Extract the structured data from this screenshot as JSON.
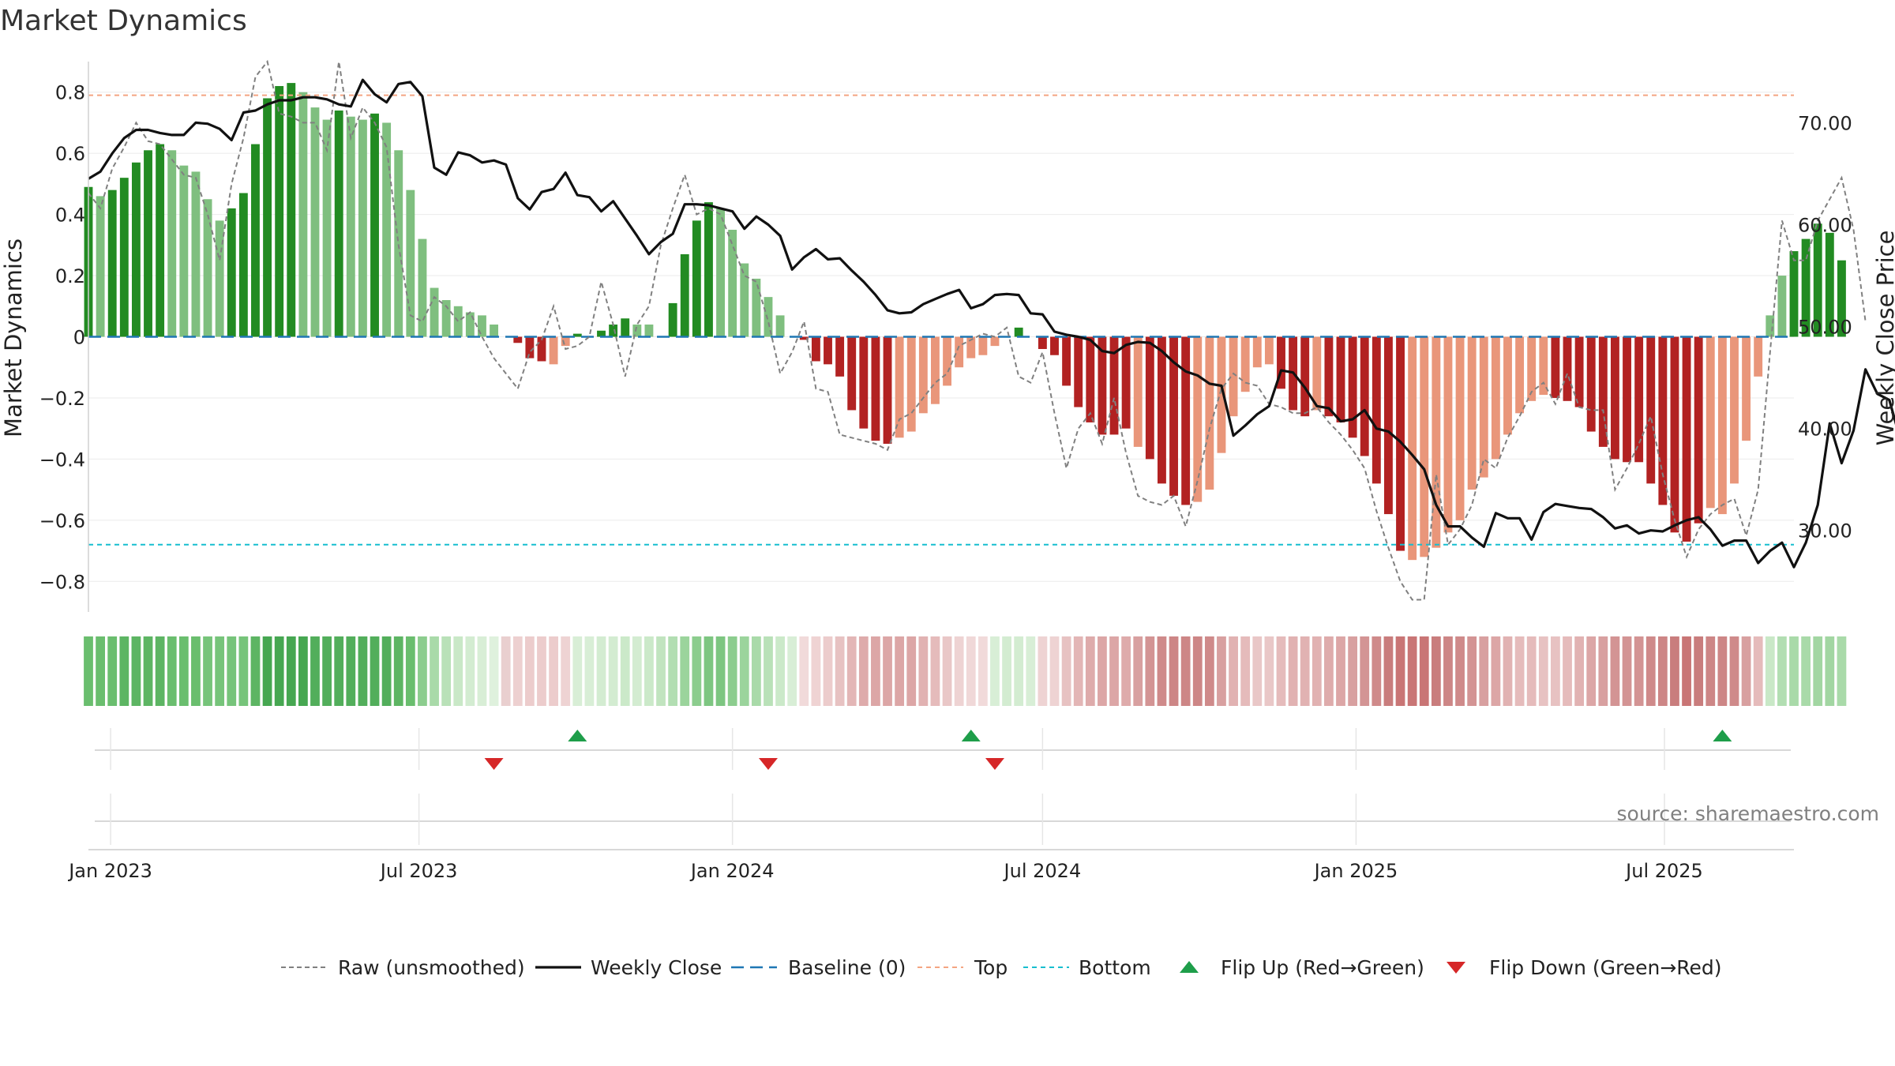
{
  "chart_data": {
    "type": "bar",
    "title": "Market Dynamics",
    "ylabel": "Market Dynamics",
    "ylabel_right": "Weekly Close Price",
    "ylim": [
      -0.9,
      0.9
    ],
    "ylim_right": [
      22,
      76
    ],
    "yticks": [
      0.8,
      0.6,
      0.4,
      0.2,
      0,
      -0.2,
      -0.4,
      -0.6,
      -0.8
    ],
    "ytick_labels": [
      "0.8",
      "0.6",
      "0.4",
      "0.2",
      "0",
      "−0.2",
      "−0.4",
      "−0.6",
      "−0.8"
    ],
    "yticks_right": [
      70,
      60,
      50,
      40,
      30
    ],
    "ytick_right_labels": [
      "70.00",
      "60.00",
      "50.00",
      "40.00",
      "30.00"
    ],
    "xlim": [
      "2022-12-19",
      "2025-09-15"
    ],
    "xticks": [
      {
        "date": "2023-01-01",
        "label": "Jan 2023"
      },
      {
        "date": "2023-07-01",
        "label": "Jul 2023"
      },
      {
        "date": "2024-01-01",
        "label": "Jan 2024"
      },
      {
        "date": "2024-07-01",
        "label": "Jul 2024"
      },
      {
        "date": "2025-01-01",
        "label": "Jan 2025"
      },
      {
        "date": "2025-07-01",
        "label": "Jul 2025"
      }
    ],
    "first_week": "2022-12-19",
    "top_level": 0.79,
    "bottom_level": -0.68,
    "colors": {
      "green_strong": "#228b22",
      "green_light": "#7fbf7f",
      "red_strong": "#b22222",
      "red_light": "#e9967a",
      "raw": "#808080",
      "close": "#111111",
      "baseline": "#1f77b4",
      "top": "#f4a582",
      "bottom": "#17becf",
      "flip_up": "#1e9e4a",
      "flip_down": "#d62728"
    },
    "momentum": [
      0.49,
      0.46,
      0.48,
      0.52,
      0.57,
      0.61,
      0.63,
      0.61,
      0.56,
      0.54,
      0.45,
      0.38,
      0.42,
      0.47,
      0.63,
      0.78,
      0.82,
      0.83,
      0.8,
      0.75,
      0.71,
      0.74,
      0.72,
      0.71,
      0.73,
      0.7,
      0.61,
      0.48,
      0.32,
      0.16,
      0.12,
      0.1,
      0.08,
      0.07,
      0.04,
      0.0,
      -0.02,
      -0.07,
      -0.08,
      -0.09,
      -0.03,
      0.01,
      0.0,
      0.02,
      0.04,
      0.06,
      0.04,
      0.04,
      0.0,
      0.11,
      0.27,
      0.38,
      0.44,
      0.42,
      0.35,
      0.24,
      0.19,
      0.13,
      0.07,
      0.0,
      -0.01,
      -0.08,
      -0.09,
      -0.13,
      -0.24,
      -0.3,
      -0.34,
      -0.35,
      -0.33,
      -0.31,
      -0.25,
      -0.22,
      -0.16,
      -0.1,
      -0.07,
      -0.06,
      -0.03,
      0.0,
      0.03,
      0.0,
      -0.04,
      -0.06,
      -0.16,
      -0.23,
      -0.28,
      -0.32,
      -0.32,
      -0.3,
      -0.36,
      -0.4,
      -0.48,
      -0.52,
      -0.55,
      -0.54,
      -0.5,
      -0.38,
      -0.26,
      -0.18,
      -0.1,
      -0.09,
      -0.17,
      -0.24,
      -0.26,
      -0.24,
      -0.26,
      -0.28,
      -0.33,
      -0.39,
      -0.48,
      -0.58,
      -0.7,
      -0.73,
      -0.72,
      -0.69,
      -0.64,
      -0.6,
      -0.5,
      -0.46,
      -0.4,
      -0.32,
      -0.25,
      -0.21,
      -0.19,
      -0.2,
      -0.21,
      -0.23,
      -0.31,
      -0.36,
      -0.4,
      -0.41,
      -0.41,
      -0.48,
      -0.55,
      -0.64,
      -0.67,
      -0.61,
      -0.56,
      -0.58,
      -0.48,
      -0.34,
      -0.13,
      0.07,
      0.2,
      0.28,
      0.32,
      0.37,
      0.34,
      0.25
    ],
    "bar_strength": [
      "s",
      "l",
      "s",
      "s",
      "s",
      "s",
      "s",
      "l",
      "l",
      "l",
      "l",
      "l",
      "s",
      "s",
      "s",
      "s",
      "s",
      "s",
      "l",
      "l",
      "l",
      "s",
      "l",
      "l",
      "s",
      "l",
      "l",
      "l",
      "l",
      "l",
      "l",
      "l",
      "l",
      "l",
      "l",
      "l",
      "s",
      "s",
      "s",
      "l",
      "l",
      "s",
      "s",
      "s",
      "s",
      "s",
      "l",
      "l",
      "s",
      "s",
      "s",
      "s",
      "s",
      "l",
      "l",
      "l",
      "l",
      "l",
      "l",
      "l",
      "s",
      "s",
      "s",
      "s",
      "s",
      "s",
      "s",
      "s",
      "l",
      "l",
      "l",
      "l",
      "l",
      "l",
      "l",
      "l",
      "l",
      "s",
      "s",
      "l",
      "s",
      "s",
      "s",
      "s",
      "s",
      "s",
      "s",
      "s",
      "l",
      "s",
      "s",
      "s",
      "s",
      "l",
      "l",
      "l",
      "l",
      "l",
      "l",
      "l",
      "s",
      "s",
      "s",
      "l",
      "s",
      "s",
      "s",
      "s",
      "s",
      "s",
      "s",
      "l",
      "l",
      "l",
      "l",
      "l",
      "l",
      "l",
      "l",
      "l",
      "l",
      "l",
      "l",
      "s",
      "s",
      "s",
      "s",
      "s",
      "s",
      "s",
      "s",
      "s",
      "s",
      "s",
      "s",
      "s",
      "l",
      "l",
      "l",
      "l",
      "l",
      "l",
      "l",
      "s",
      "s",
      "s",
      "s",
      "s",
      "l"
    ],
    "raw": [
      0.47,
      0.42,
      0.55,
      0.62,
      0.7,
      0.64,
      0.63,
      0.58,
      0.53,
      0.52,
      0.4,
      0.25,
      0.5,
      0.65,
      0.85,
      0.9,
      0.73,
      0.72,
      0.7,
      0.7,
      0.61,
      0.9,
      0.65,
      0.75,
      0.7,
      0.62,
      0.3,
      0.07,
      0.05,
      0.13,
      0.1,
      0.05,
      0.08,
      0.0,
      -0.07,
      -0.12,
      -0.17,
      -0.05,
      -0.01,
      0.1,
      -0.04,
      -0.03,
      0.0,
      0.18,
      0.04,
      -0.13,
      0.04,
      0.1,
      0.3,
      0.42,
      0.53,
      0.4,
      0.42,
      0.4,
      0.3,
      0.2,
      0.18,
      0.05,
      -0.12,
      -0.05,
      0.05,
      -0.17,
      -0.18,
      -0.32,
      -0.33,
      -0.34,
      -0.35,
      -0.37,
      -0.27,
      -0.25,
      -0.2,
      -0.15,
      -0.12,
      -0.03,
      -0.01,
      0.01,
      0.0,
      0.03,
      -0.13,
      -0.15,
      -0.05,
      -0.25,
      -0.43,
      -0.3,
      -0.25,
      -0.35,
      -0.2,
      -0.38,
      -0.52,
      -0.54,
      -0.55,
      -0.52,
      -0.62,
      -0.47,
      -0.3,
      -0.17,
      -0.12,
      -0.15,
      -0.16,
      -0.22,
      -0.23,
      -0.25,
      -0.25,
      -0.23,
      -0.28,
      -0.32,
      -0.37,
      -0.43,
      -0.57,
      -0.69,
      -0.8,
      -0.86,
      -0.86,
      -0.45,
      -0.68,
      -0.63,
      -0.55,
      -0.4,
      -0.43,
      -0.33,
      -0.26,
      -0.18,
      -0.15,
      -0.22,
      -0.12,
      -0.23,
      -0.24,
      -0.24,
      -0.5,
      -0.43,
      -0.35,
      -0.26,
      -0.45,
      -0.6,
      -0.72,
      -0.63,
      -0.58,
      -0.55,
      -0.53,
      -0.65,
      -0.5,
      -0.05,
      0.38,
      0.25,
      0.25,
      0.38,
      0.45,
      0.52,
      0.35,
      0.05
    ],
    "close": [
      64.5,
      65.2,
      67.0,
      68.5,
      69.3,
      69.3,
      69.0,
      68.8,
      68.8,
      70.0,
      69.9,
      69.4,
      68.3,
      71.0,
      71.2,
      71.8,
      72.2,
      72.2,
      72.5,
      72.5,
      72.3,
      71.8,
      71.6,
      74.2,
      72.8,
      72.0,
      73.8,
      74.0,
      72.6,
      65.6,
      64.9,
      67.1,
      66.8,
      66.1,
      66.3,
      65.9,
      62.6,
      61.5,
      63.2,
      63.5,
      65.1,
      62.9,
      62.7,
      61.3,
      62.3,
      60.6,
      58.9,
      57.1,
      58.3,
      59.1,
      62.0,
      62.0,
      61.9,
      61.6,
      61.3,
      59.6,
      60.8,
      60.0,
      58.9,
      55.6,
      56.8,
      57.6,
      56.6,
      56.7,
      55.5,
      54.4,
      53.1,
      51.6,
      51.3,
      51.4,
      52.2,
      52.7,
      53.2,
      53.6,
      51.8,
      52.2,
      53.1,
      53.2,
      53.1,
      51.3,
      51.2,
      49.5,
      49.2,
      49.0,
      48.7,
      47.6,
      47.4,
      48.2,
      48.5,
      48.4,
      47.6,
      46.5,
      45.6,
      45.2,
      44.4,
      44.2,
      39.3,
      40.3,
      41.4,
      42.2,
      45.7,
      45.5,
      44.0,
      42.2,
      42.0,
      40.7,
      40.9,
      41.8,
      40.0,
      39.7,
      38.7,
      37.4,
      36.0,
      32.5,
      30.4,
      30.4,
      29.3,
      28.4,
      31.7,
      31.2,
      31.2,
      29.1,
      31.8,
      32.6,
      32.4,
      32.2,
      32.1,
      31.3,
      30.2,
      30.5,
      29.7,
      30.0,
      29.9,
      30.5,
      31.0,
      31.3,
      30.1,
      28.5,
      29.0,
      29.0,
      26.8,
      28.0,
      28.8,
      26.4,
      28.8,
      32.5,
      40.5,
      36.6,
      39.8,
      45.8,
      43.4,
      42.8,
      38.6,
      37.6
    ]
  },
  "strip_colors": [
    "#6abe6e",
    "#6abe6e",
    "#6abe6e",
    "#5db563",
    "#5db563",
    "#5db563",
    "#5db563",
    "#6abe6e",
    "#6abe6e",
    "#6abe6e",
    "#76c47a",
    "#76c47a",
    "#76c47a",
    "#76c47a",
    "#5db563",
    "#46a751",
    "#46a751",
    "#46a751",
    "#46a751",
    "#52ae5b",
    "#52ae5b",
    "#52ae5b",
    "#52ae5b",
    "#52ae5b",
    "#52ae5b",
    "#52ae5b",
    "#5db563",
    "#6abe6e",
    "#8ccd8e",
    "#a9daa9",
    "#b9e1b8",
    "#c9e8c7",
    "#d3ecd1",
    "#d8eed6",
    "#dff1dd",
    "#e9cfcf",
    "#edd0d0",
    "#eccccc",
    "#eccccc",
    "#eccccc",
    "#eed3d3",
    "#d8eed6",
    "#d8eed6",
    "#d3ecd1",
    "#d3ecd1",
    "#cbe9c9",
    "#d3ecd1",
    "#cbe9c9",
    "#c1e4bf",
    "#b2deb2",
    "#9bd49c",
    "#8ccd8e",
    "#7dc681",
    "#7dc681",
    "#8ccd8e",
    "#9bd49c",
    "#a9daa9",
    "#b9e1b8",
    "#cbe9c9",
    "#d8eed6",
    "#f1dada",
    "#efd3d3",
    "#eccccc",
    "#e7c2c2",
    "#e3b6b6",
    "#deabab",
    "#dca6a6",
    "#dca6a6",
    "#dca6a6",
    "#dca6a6",
    "#e1b2b2",
    "#e5bbbb",
    "#e9c7c7",
    "#eed3d3",
    "#f0d8d8",
    "#f1dada",
    "#d8eed6",
    "#d3ecd1",
    "#d3ecd1",
    "#d8eed6",
    "#eed3d3",
    "#eed3d3",
    "#e7c2c2",
    "#e3b6b6",
    "#deabab",
    "#dca6a6",
    "#dca6a6",
    "#deabab",
    "#d8a0a0",
    "#d39494",
    "#cf8a8a",
    "#cd8686",
    "#cd8686",
    "#cd8686",
    "#cf8a8a",
    "#d8a0a0",
    "#e1b2b2",
    "#e5bbbb",
    "#e9c7c7",
    "#e9c7c7",
    "#e5bbbb",
    "#e1b2b2",
    "#e1b2b2",
    "#e1b2b2",
    "#deabab",
    "#dca6a6",
    "#d8a0a0",
    "#d39494",
    "#cf8a8a",
    "#c97d7d",
    "#c97575",
    "#c97575",
    "#c97575",
    "#c97d7d",
    "#cd8686",
    "#cf8a8a",
    "#d39494",
    "#d8a0a0",
    "#dca6a6",
    "#e1b2b2",
    "#e5bbbb",
    "#e5bbbb",
    "#e7c2c2",
    "#e7c2c2",
    "#e5bbbb",
    "#e1b2b2",
    "#dca6a6",
    "#d8a0a0",
    "#d39494",
    "#d39494",
    "#d39494",
    "#cf8a8a",
    "#cd8686",
    "#c97d7d",
    "#c97575",
    "#c97d7d",
    "#cd8686",
    "#cd8686",
    "#cf8a8a",
    "#d8a0a0",
    "#e5bbbb",
    "#c9e8c7",
    "#b2deb2",
    "#a9daa9",
    "#a9daa9",
    "#a2d6a2",
    "#a2d6a2",
    "#a9daa9"
  ],
  "flip_up_dates": [
    "2023-10-02",
    "2024-05-20",
    "2025-08-04"
  ],
  "flip_down_dates": [
    "2023-08-14",
    "2024-01-22",
    "2024-06-03"
  ],
  "source_text": "source: sharemaestro.com",
  "legend": [
    {
      "key": "raw",
      "label": "Raw (unsmoothed)"
    },
    {
      "key": "close",
      "label": "Weekly Close"
    },
    {
      "key": "baseline",
      "label": "Baseline (0)"
    },
    {
      "key": "top",
      "label": "Top"
    },
    {
      "key": "bottom",
      "label": "Bottom"
    },
    {
      "key": "flip_up",
      "label": "Flip Up (Red→Green)"
    },
    {
      "key": "flip_down",
      "label": "Flip Down (Green→Red)"
    }
  ]
}
